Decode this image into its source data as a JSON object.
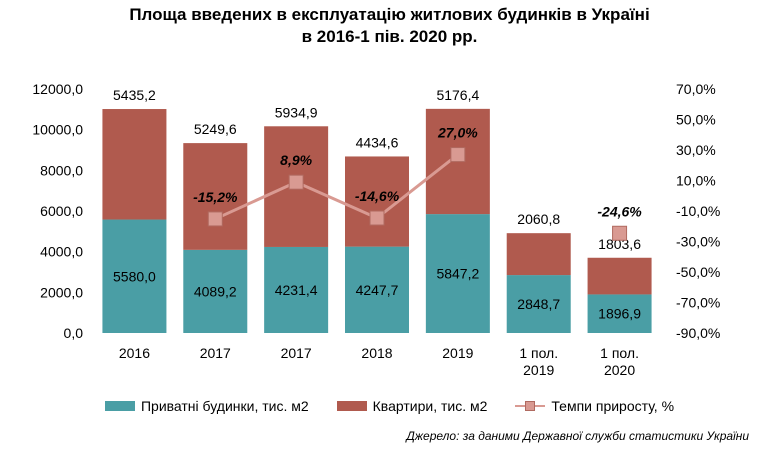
{
  "title_line1": "Площа введених в експлуатацію житлових будинків в Україні",
  "title_line2": "в 2016-1 пів. 2020 рр.",
  "source": "Джерело: за даними Державної служби статистики України",
  "colors": {
    "private": "#4a9ea5",
    "apartments": "#b05a4e",
    "rate": "#d99a92"
  },
  "chart_data": {
    "type": "bar",
    "stacked": true,
    "title": "Площа введених в експлуатацію житлових будинків в Україні в 2016-1 пів. 2020 рр.",
    "categories": [
      [
        "2016"
      ],
      [
        "2017"
      ],
      [
        "2017"
      ],
      [
        "2018"
      ],
      [
        "2019"
      ],
      [
        "1 пол.",
        "2019"
      ],
      [
        "1 пол.",
        "2020"
      ]
    ],
    "series": [
      {
        "name": "Приватні будинки,  тис. м2",
        "values": [
          5580.0,
          4089.2,
          4231.4,
          4247.7,
          5847.2,
          2848.7,
          1896.9
        ],
        "labels": [
          "5580,0",
          "4089,2",
          "4231,4",
          "4247,7",
          "5847,2",
          "2848,7",
          "1896,9"
        ]
      },
      {
        "name": "Квартири, тис. м2",
        "values": [
          5435.2,
          5249.6,
          5934.9,
          4434.6,
          5176.4,
          2060.8,
          1803.6
        ],
        "labels": [
          "5435,2",
          "5249,6",
          "5934,9",
          "4434,6",
          "5176,4",
          "2060,8",
          "1803,6"
        ]
      },
      {
        "name": "Темпи приросту, %",
        "axis": "right",
        "values": [
          null,
          -15.2,
          8.9,
          -14.6,
          27.0,
          null,
          -24.6
        ],
        "labels": [
          "",
          "-15,2%",
          "8,9%",
          "-14,6%",
          "27,0%",
          "",
          "-24,6%"
        ]
      }
    ],
    "ylim": [
      0,
      12000
    ],
    "yticks": [
      "0,0",
      "2000,0",
      "4000,0",
      "6000,0",
      "8000,0",
      "10000,0",
      "12000,0"
    ],
    "y2lim": [
      -90,
      70
    ],
    "y2ticks": [
      "-90,0%",
      "-70,0%",
      "-50,0%",
      "-30,0%",
      "-10,0%",
      "10,0%",
      "30,0%",
      "50,0%",
      "70,0%"
    ],
    "legend": "bottom",
    "grid": false
  }
}
